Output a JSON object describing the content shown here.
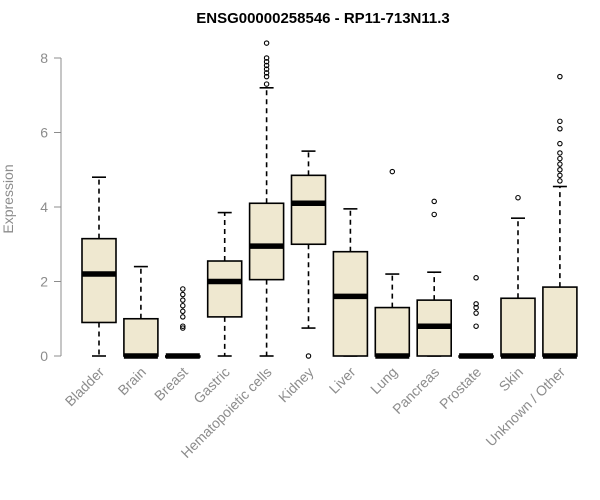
{
  "chart_data": {
    "type": "boxplot",
    "title": "ENSG00000258546 - RP11-713N11.3",
    "xlabel": "",
    "ylabel": "Expression",
    "ylim": [
      0,
      8.4
    ],
    "yticks": [
      0,
      2,
      4,
      6,
      8
    ],
    "box_fill": "#efe8d0",
    "categories": [
      "Bladder",
      "Brain",
      "Breast",
      "Gastric",
      "Hematopoietic cells",
      "Kidney",
      "Liver",
      "Lung",
      "Pancreas",
      "Prostate",
      "Skin",
      "Unknown / Other"
    ],
    "series": [
      {
        "name": "Bladder",
        "min": 0,
        "q1": 0.9,
        "median": 2.2,
        "q3": 3.15,
        "max": 4.8,
        "outliers": []
      },
      {
        "name": "Brain",
        "min": 0,
        "q1": 0,
        "median": 0,
        "q3": 1.0,
        "max": 2.4,
        "outliers": []
      },
      {
        "name": "Breast",
        "min": 0,
        "q1": 0,
        "median": 0,
        "q3": 0,
        "max": 0,
        "outliers": [
          0.75,
          0.8,
          1.05,
          1.2,
          1.35,
          1.5,
          1.65,
          1.8
        ]
      },
      {
        "name": "Gastric",
        "min": 0,
        "q1": 1.05,
        "median": 2.0,
        "q3": 2.55,
        "max": 3.85,
        "outliers": []
      },
      {
        "name": "Hematopoietic cells",
        "min": 0,
        "q1": 2.05,
        "median": 2.95,
        "q3": 4.1,
        "max": 7.2,
        "outliers": [
          7.3,
          7.5,
          7.6,
          7.7,
          7.8,
          7.9,
          8.0,
          8.4
        ]
      },
      {
        "name": "Kidney",
        "min": 0.75,
        "q1": 3.0,
        "median": 4.1,
        "q3": 4.85,
        "max": 5.5,
        "outliers": [
          0
        ]
      },
      {
        "name": "Liver",
        "min": 0,
        "q1": 0,
        "median": 1.6,
        "q3": 2.8,
        "max": 3.95,
        "outliers": []
      },
      {
        "name": "Lung",
        "min": 0,
        "q1": 0,
        "median": 0,
        "q3": 1.3,
        "max": 2.2,
        "outliers": [
          4.95
        ]
      },
      {
        "name": "Pancreas",
        "min": 0,
        "q1": 0,
        "median": 0.8,
        "q3": 1.5,
        "max": 2.25,
        "outliers": [
          3.8,
          4.15
        ]
      },
      {
        "name": "Prostate",
        "min": 0,
        "q1": 0,
        "median": 0,
        "q3": 0,
        "max": 0,
        "outliers": [
          0.8,
          1.15,
          1.3,
          1.4,
          2.1
        ]
      },
      {
        "name": "Skin",
        "min": 0,
        "q1": 0,
        "median": 0,
        "q3": 1.55,
        "max": 3.7,
        "outliers": [
          4.25
        ]
      },
      {
        "name": "Unknown / Other",
        "min": 0,
        "q1": 0,
        "median": 0,
        "q3": 1.85,
        "max": 4.55,
        "outliers": [
          4.7,
          4.85,
          5.0,
          5.15,
          5.3,
          5.45,
          5.7,
          6.1,
          6.3,
          7.5
        ]
      }
    ]
  }
}
